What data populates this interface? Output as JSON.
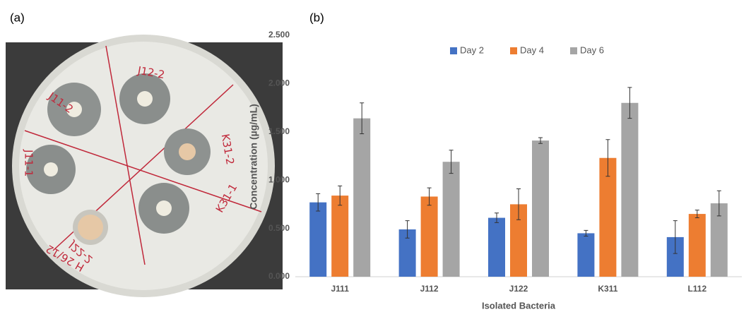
{
  "panel_labels": {
    "a": "(a)",
    "b": "(b)"
  },
  "photo": {
    "plate_labels": [
      "J11-2",
      "J12-2",
      "K31-2",
      "K31-1",
      "J22-2",
      "J11-1",
      "H 26/12"
    ]
  },
  "chart_data": {
    "type": "bar",
    "y_label": "Concentration (µg/mL)",
    "x_label": "Isolated Bacteria",
    "categories": [
      "J111",
      "J112",
      "J122",
      "K311",
      "L112"
    ],
    "series": [
      {
        "name": "Day 2",
        "color": "#4472c4",
        "values": [
          0.77,
          0.49,
          0.61,
          0.45,
          0.41
        ],
        "errors": [
          0.09,
          0.09,
          0.05,
          0.03,
          0.17
        ]
      },
      {
        "name": "Day 4",
        "color": "#ed7d31",
        "values": [
          0.84,
          0.83,
          0.75,
          1.23,
          0.65
        ],
        "errors": [
          0.1,
          0.09,
          0.16,
          0.19,
          0.04
        ]
      },
      {
        "name": "Day 6",
        "color": "#a5a5a5",
        "values": [
          1.64,
          1.19,
          1.41,
          1.8,
          0.76
        ],
        "errors": [
          0.16,
          0.12,
          0.03,
          0.16,
          0.13
        ]
      }
    ],
    "ylim": [
      0,
      2.5
    ],
    "yticks": [
      {
        "value": 0,
        "label": "0.000"
      },
      {
        "value": 0.5,
        "label": "0.500"
      },
      {
        "value": 1,
        "label": "1.000"
      },
      {
        "value": 1.5,
        "label": "1.500"
      },
      {
        "value": 2,
        "label": "2.000"
      },
      {
        "value": 2.5,
        "label": "2.500"
      }
    ],
    "grid": false,
    "legend": "top"
  }
}
